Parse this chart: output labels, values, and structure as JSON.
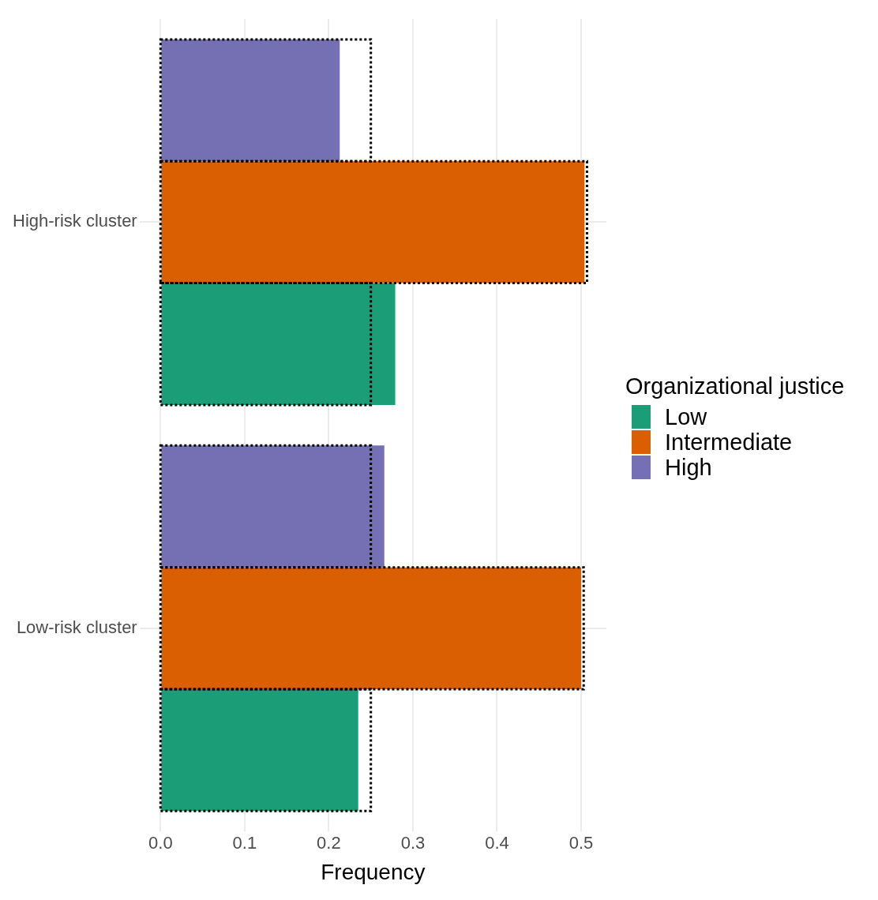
{
  "chart_data": {
    "type": "bar",
    "orientation": "horizontal",
    "xlabel": "Frequency",
    "legend_title": "Organizational justice",
    "legend": "right",
    "grid": true,
    "categories": [
      "High-risk cluster",
      "Low-risk cluster"
    ],
    "xlim": [
      -0.025,
      0.53
    ],
    "xticks": [
      {
        "value": 0,
        "label": "0.0"
      },
      {
        "value": 0.1,
        "label": "0.1"
      },
      {
        "value": 0.2,
        "label": "0.2"
      },
      {
        "value": 0.3,
        "label": "0.3"
      },
      {
        "value": 0.4,
        "label": "0.4"
      },
      {
        "value": 0.5,
        "label": "0.5"
      }
    ],
    "series": [
      {
        "name": "Low",
        "color": "#1b9e77",
        "values": [
          0.279,
          0.235
        ]
      },
      {
        "name": "Intermediate",
        "color": "#d95f02",
        "values": [
          0.504,
          0.5
        ]
      },
      {
        "name": "High",
        "color": "#7570b3",
        "values": [
          0.213,
          0.266
        ]
      },
      {
        "color": "#000000",
        "line_style": "dotted",
        "values": [
          0.25,
          0.25
        ]
      },
      {
        "color": "#000000",
        "line_style": "dotted",
        "values": [
          0.507,
          0.503
        ]
      },
      {
        "color": "#000000",
        "line_style": "dotted",
        "values": [
          0.25,
          0.25
        ]
      }
    ]
  }
}
